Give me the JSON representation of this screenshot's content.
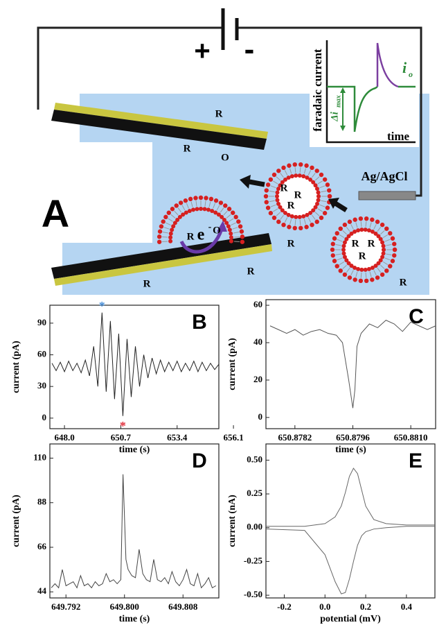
{
  "panel_a": {
    "letter": "A",
    "battery_plus": "+",
    "battery_minus": "-",
    "reference_electrode": "Ag/AgCl",
    "electron": "e",
    "electron_charge": "-",
    "inset": {
      "y_label": "faradaic current",
      "x_label": "time",
      "delta": "Δi",
      "delta_sub": "max",
      "current": "i",
      "current_sub": "o"
    },
    "species": [
      "R",
      "R",
      "O",
      "R",
      "R",
      "R",
      "R",
      "R",
      "R",
      "R",
      "O",
      "R",
      "R",
      "R",
      "R"
    ]
  },
  "chart_data": [
    {
      "type": "line",
      "panel": "B",
      "x_label": "time (s)",
      "y_label": "current (pA)",
      "x": [
        647.4,
        647.6,
        647.8,
        648.0,
        648.2,
        648.4,
        648.6,
        648.8,
        649.0,
        649.2,
        649.4,
        649.6,
        649.8,
        650.0,
        650.2,
        650.4,
        650.6,
        650.8,
        651.0,
        651.2,
        651.4,
        651.6,
        651.8,
        652.0,
        652.2,
        652.4,
        652.6,
        652.8,
        653.0,
        653.2,
        653.4,
        653.6,
        653.8,
        654.0,
        654.2,
        654.4,
        654.6,
        654.8,
        655.0,
        655.2,
        655.4
      ],
      "series": [
        {
          "color": "#222222",
          "values": [
            52,
            45,
            53,
            44,
            54,
            45,
            52,
            43,
            55,
            40,
            68,
            30,
            100,
            25,
            92,
            18,
            80,
            2,
            75,
            20,
            68,
            30,
            60,
            38,
            57,
            42,
            55,
            44,
            53,
            45,
            54,
            44,
            52,
            45,
            54,
            44,
            53,
            45,
            52,
            46,
            51
          ]
        }
      ],
      "annotations": [
        {
          "text": "*",
          "color": "#4a90d9"
        },
        {
          "text": "*",
          "color": "#e0303c"
        }
      ],
      "xlim": [
        647.3,
        655.4
      ],
      "ylim": [
        -10,
        107
      ],
      "xticks": [
        {
          "value": 648.0,
          "label": "648.0"
        },
        650.7,
        653.4,
        656.1
      ],
      "yticks": [
        0,
        30,
        60,
        90
      ]
    },
    {
      "type": "line",
      "panel": "C",
      "x_label": "time (s)",
      "y_label": "current (pA)",
      "x": [
        650.8776,
        650.8778,
        650.878,
        650.8782,
        650.8784,
        650.8786,
        650.8788,
        650.879,
        650.8792,
        650.87935,
        650.8795,
        650.8796,
        650.87965,
        650.8797,
        650.8798,
        650.88,
        650.8802,
        650.8804,
        650.8806,
        650.8808,
        650.881,
        650.8812,
        650.8814,
        650.8816
      ],
      "series": [
        {
          "color": "#555555",
          "values": [
            49,
            47,
            45,
            47,
            44,
            46,
            47,
            45,
            44,
            40,
            20,
            5,
            15,
            38,
            45,
            50,
            48,
            52,
            50,
            46,
            51,
            49,
            47,
            49
          ]
        }
      ],
      "xlim": [
        650.8775,
        650.8816
      ],
      "ylim": [
        -6,
        63
      ],
      "xticks": [
        650.8782,
        650.8796,
        {
          "value": 650.881,
          "label": "650.8810"
        }
      ],
      "yticks": [
        0,
        20,
        40,
        60
      ]
    },
    {
      "type": "line",
      "panel": "D",
      "x_label": "time (s)",
      "y_label": "current (pA)",
      "x": [
        649.79,
        649.7905,
        649.791,
        649.7915,
        649.792,
        649.7925,
        649.793,
        649.7935,
        649.794,
        649.7945,
        649.795,
        649.7955,
        649.796,
        649.7965,
        649.797,
        649.7975,
        649.798,
        649.7985,
        649.799,
        649.7995,
        649.7998,
        649.8002,
        649.8005,
        649.801,
        649.8015,
        649.802,
        649.8025,
        649.803,
        649.8035,
        649.804,
        649.8045,
        649.805,
        649.8055,
        649.806,
        649.8065,
        649.807,
        649.8075,
        649.808,
        649.8085,
        649.809,
        649.8095,
        649.81,
        649.8105,
        649.811,
        649.8115,
        649.812,
        649.8125
      ],
      "series": [
        {
          "color": "#444444",
          "values": [
            46,
            48,
            46,
            55,
            47,
            48,
            49,
            46,
            52,
            47,
            48,
            46,
            49,
            47,
            48,
            53,
            49,
            50,
            48,
            50,
            102,
            60,
            55,
            52,
            51,
            65,
            53,
            50,
            49,
            60,
            50,
            49,
            51,
            48,
            54,
            49,
            47,
            50,
            55,
            48,
            47,
            53,
            46,
            48,
            51,
            46,
            47
          ]
        }
      ],
      "xlim": [
        649.7898,
        649.8129
      ],
      "ylim": [
        41,
        117
      ],
      "xticks": [
        649.792,
        {
          "value": 649.8,
          "label": "649.800"
        },
        649.808
      ],
      "yticks": [
        44,
        66,
        88,
        110
      ]
    },
    {
      "type": "line",
      "panel": "E",
      "x_label": "potential (mV)",
      "y_label": "current (nA)",
      "x": [
        -0.29,
        -0.1,
        0.0,
        0.05,
        0.08,
        0.1,
        0.12,
        0.14,
        0.16,
        0.18,
        0.2,
        0.24,
        0.3,
        0.4,
        0.54
      ],
      "series": [
        {
          "color": "#666666",
          "values": [
            0.01,
            0.01,
            0.03,
            0.08,
            0.16,
            0.26,
            0.38,
            0.44,
            0.4,
            0.28,
            0.16,
            0.06,
            0.03,
            0.02,
            0.02
          ]
        },
        {
          "color": "#666666",
          "values": [
            -0.01,
            -0.02,
            -0.2,
            -0.4,
            -0.49,
            -0.48,
            -0.38,
            -0.25,
            -0.13,
            -0.06,
            -0.03,
            -0.01,
            0.0,
            0.01,
            0.01
          ]
        }
      ],
      "xlim": [
        -0.29,
        0.54
      ],
      "ylim": [
        -0.52,
        0.62
      ],
      "xticks": [
        -0.2,
        {
          "value": 0,
          "label": "0.0"
        },
        0.2,
        0.4
      ],
      "yticks": [
        {
          "value": 0.5,
          "label": "0.50"
        },
        {
          "value": 0.25,
          "label": "0.25"
        },
        {
          "value": 0,
          "label": "0.00"
        },
        {
          "value": -0.25,
          "label": "-0.25"
        },
        {
          "value": -0.5,
          "label": "-0.50"
        }
      ]
    }
  ]
}
